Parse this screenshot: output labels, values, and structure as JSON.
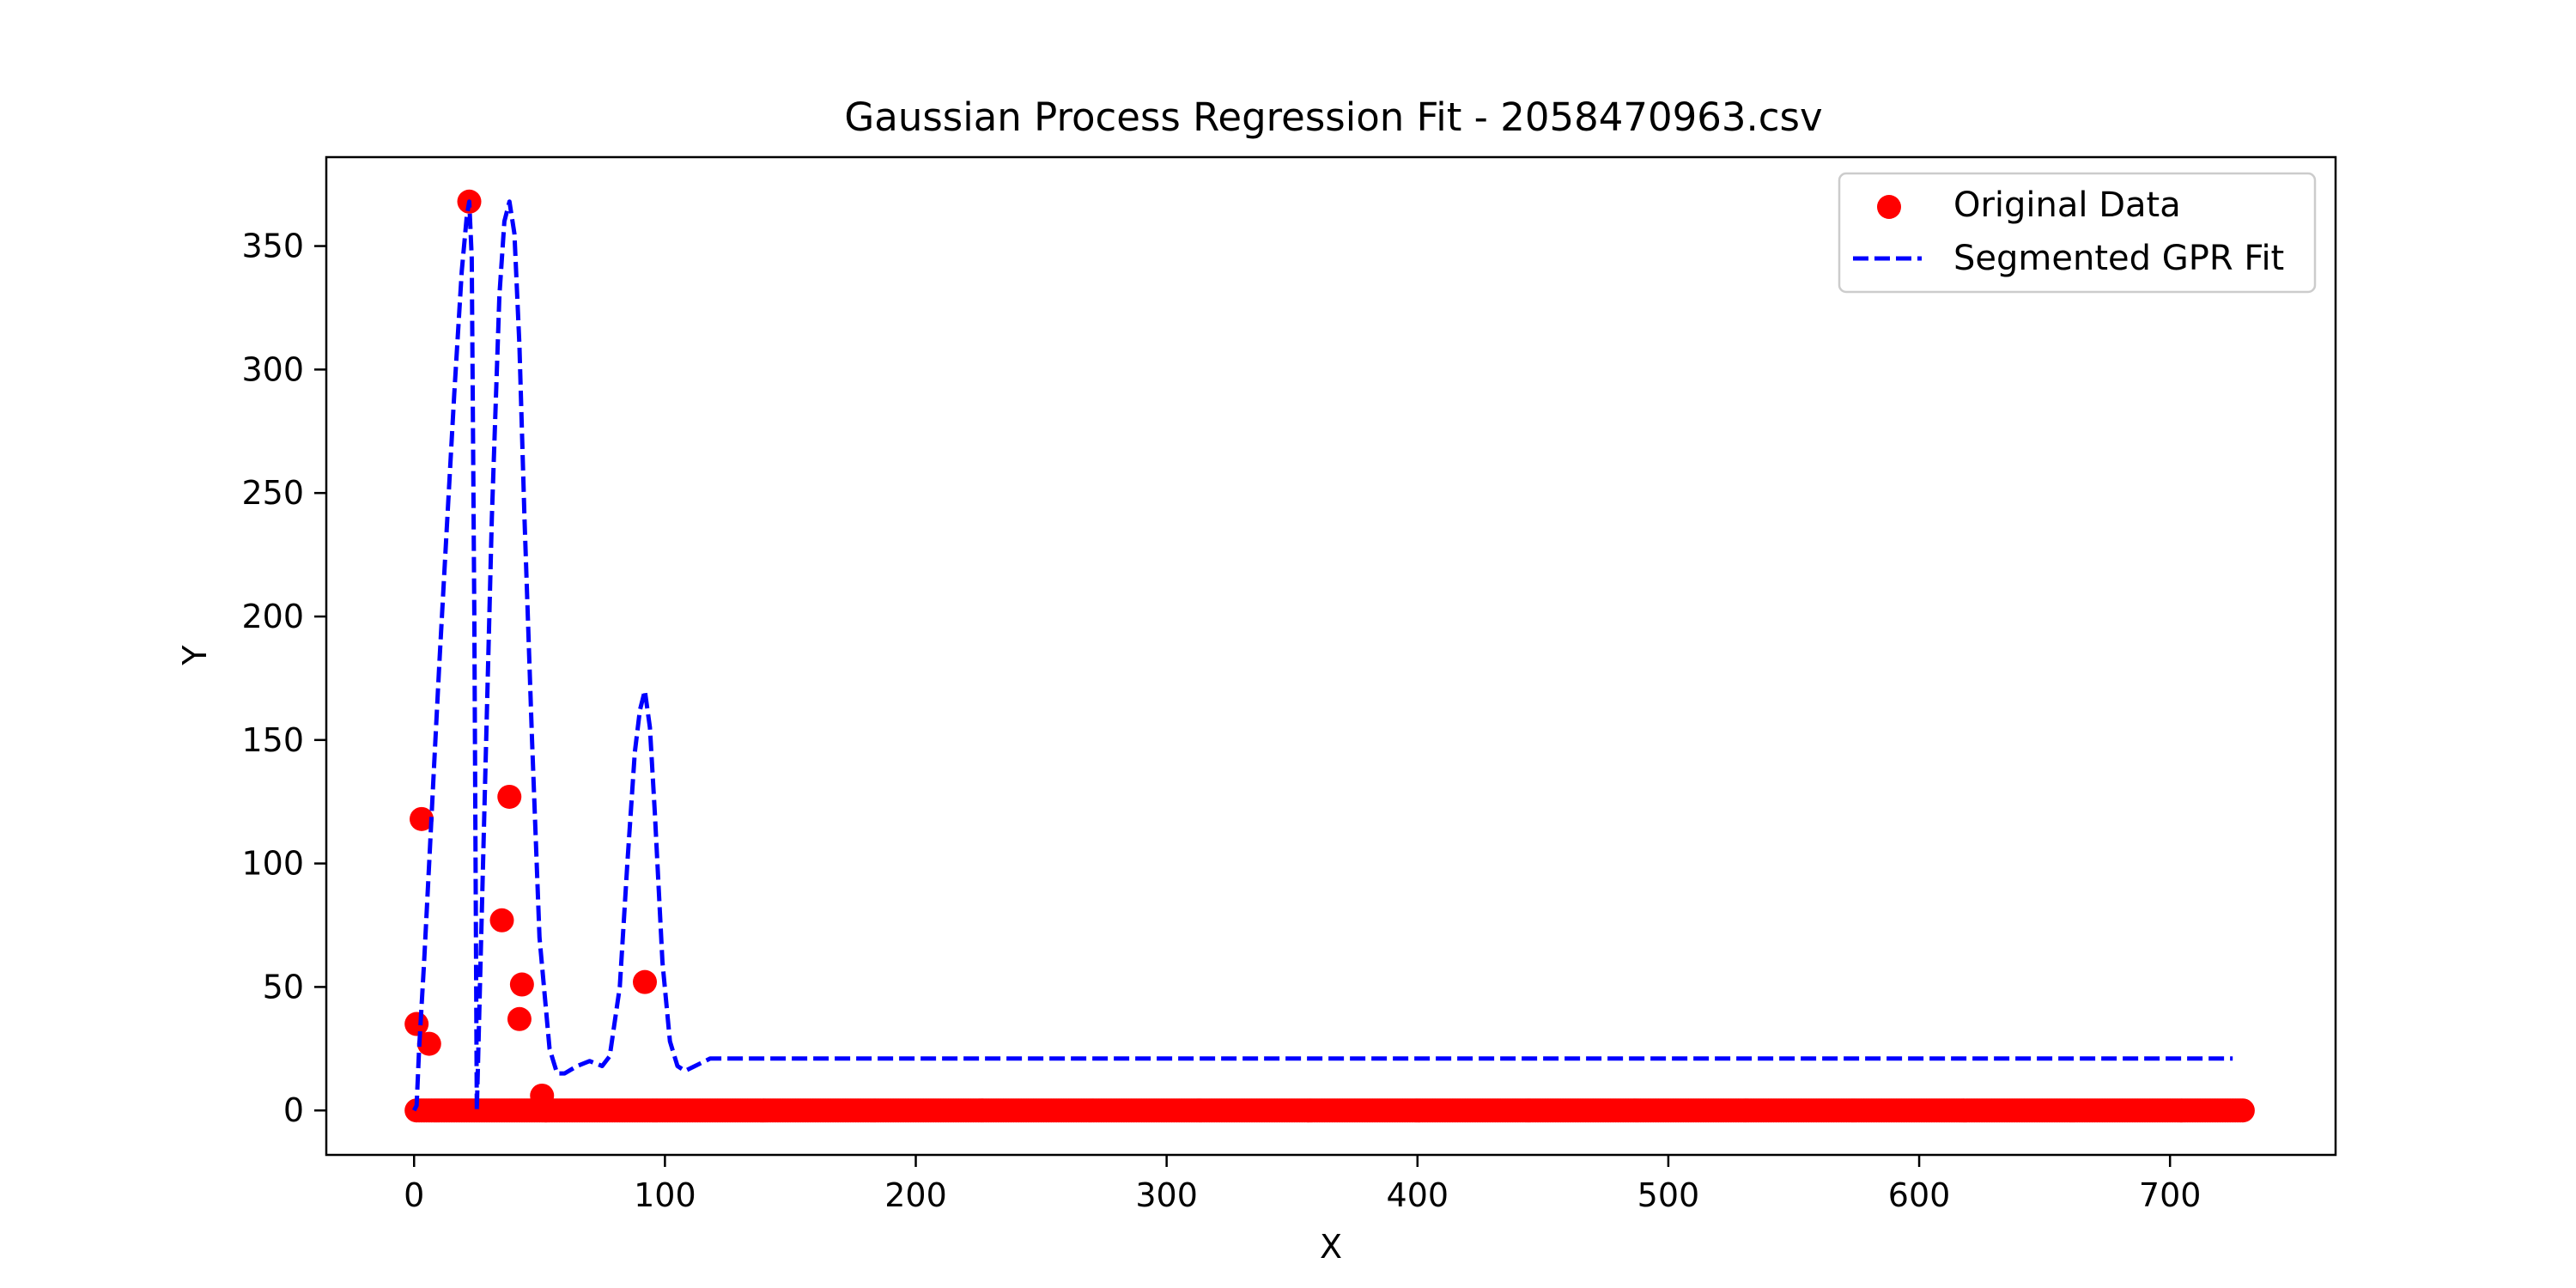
{
  "chart_data": {
    "type": "scatter",
    "title": "Gaussian Process Regression Fit - 2058470963.csv",
    "xlabel": "X",
    "ylabel": "Y",
    "xlim": [
      -35,
      766
    ],
    "ylim": [
      -18,
      386
    ],
    "xticks": [
      0,
      100,
      200,
      300,
      400,
      500,
      600,
      700
    ],
    "yticks": [
      0,
      50,
      100,
      150,
      200,
      250,
      300,
      350
    ],
    "grid": false,
    "legend": "top-right",
    "colors": {
      "scatter": "#ff0000",
      "fit": "#0000ff"
    },
    "series": [
      {
        "name": "Original Data",
        "kind": "scatter",
        "points": [
          [
            1,
            35
          ],
          [
            3,
            118
          ],
          [
            6,
            27
          ],
          [
            22,
            368
          ],
          [
            35,
            77
          ],
          [
            38,
            127
          ],
          [
            42,
            37
          ],
          [
            43,
            51
          ],
          [
            51,
            6
          ],
          [
            92,
            52
          ]
        ],
        "zero_points": {
          "x_start": 1,
          "x_end": 729,
          "step": 1,
          "y": 0
        }
      },
      {
        "name": "Segmented GPR Fit",
        "kind": "line",
        "style": "dashed",
        "x": [
          0,
          1,
          2,
          4,
          6,
          8,
          10,
          13,
          16,
          19,
          21,
          22,
          23,
          24,
          25,
          28,
          31,
          34,
          36,
          38,
          40,
          42,
          44,
          47,
          50,
          54,
          57,
          60,
          65,
          70,
          75,
          78,
          82,
          85,
          88,
          90,
          92,
          94,
          96,
          99,
          102,
          105,
          108,
          112,
          118,
          125,
          200,
          400,
          600,
          725
        ],
        "y": [
          0,
          2,
          25,
          60,
          100,
          140,
          180,
          235,
          290,
          340,
          362,
          368,
          345,
          200,
          0,
          120,
          240,
          330,
          360,
          368,
          355,
          310,
          240,
          150,
          70,
          25,
          15,
          15,
          18,
          20,
          18,
          22,
          50,
          100,
          145,
          162,
          170,
          155,
          120,
          60,
          28,
          18,
          16,
          18,
          21,
          21,
          21,
          21,
          21,
          21
        ]
      }
    ]
  }
}
